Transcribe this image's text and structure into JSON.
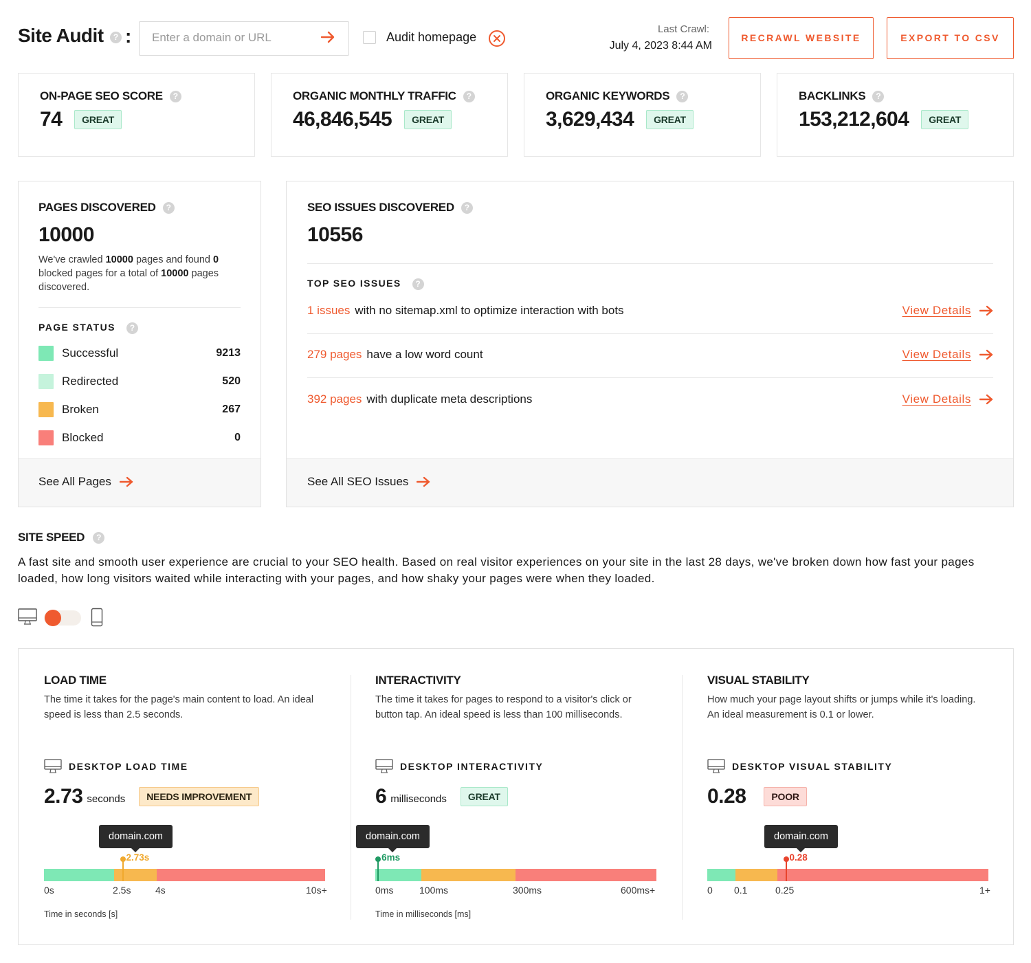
{
  "header": {
    "title": "Site Audit",
    "help": "?",
    "colon": ":",
    "search_placeholder": "Enter a domain or URL",
    "audit_homepage_label": "Audit homepage",
    "last_crawl_label": "Last Crawl:",
    "last_crawl_date": "July 4, 2023 8:44 AM",
    "recrawl_button": "RECRAWL WEBSITE",
    "export_button": "EXPORT TO CSV"
  },
  "stats": [
    {
      "label": "ON-PAGE SEO SCORE",
      "value": "74",
      "badge": "GREAT"
    },
    {
      "label": "ORGANIC MONTHLY TRAFFIC",
      "value": "46,846,545",
      "badge": "GREAT"
    },
    {
      "label": "ORGANIC KEYWORDS",
      "value": "3,629,434",
      "badge": "GREAT"
    },
    {
      "label": "BACKLINKS",
      "value": "153,212,604",
      "badge": "GREAT"
    }
  ],
  "pages": {
    "title": "PAGES DISCOVERED",
    "value": "10000",
    "text_1": "We've crawled ",
    "crawled": "10000",
    "text_2": " pages and found ",
    "blocked": "0",
    "text_3": " blocked pages for a total of ",
    "total": "10000",
    "text_4": " pages discovered.",
    "status_title": "PAGE STATUS",
    "status": [
      {
        "label": "Successful",
        "count": "9213",
        "color": "#7ee8b5"
      },
      {
        "label": "Redirected",
        "count": "520",
        "color": "#c5f3dc"
      },
      {
        "label": "Broken",
        "count": "267",
        "color": "#f7b84f"
      },
      {
        "label": "Blocked",
        "count": "0",
        "color": "#f97f7a"
      }
    ],
    "footer_link": "See All Pages"
  },
  "seo": {
    "title": "SEO ISSUES DISCOVERED",
    "value": "10556",
    "top_title": "TOP SEO ISSUES",
    "issues": [
      {
        "count": "1 issues",
        "text": "with no sitemap.xml to optimize interaction with bots",
        "link": "View Details"
      },
      {
        "count": "279 pages",
        "text": "have a low word count",
        "link": "View Details"
      },
      {
        "count": "392 pages",
        "text": "with duplicate meta descriptions",
        "link": "View Details"
      }
    ],
    "footer_link": "See All SEO Issues"
  },
  "speed": {
    "title": "SITE SPEED",
    "description": "A fast site and smooth user experience are crucial to your SEO health. Based on real visitor experiences on your site in the last 28 days, we've broken down how fast your pages loaded, how long visitors waited while interacting with your pages, and how shaky your pages were when they loaded.",
    "device_selected": "desktop",
    "metrics": [
      {
        "title": "LOAD TIME",
        "description": "The time it takes for the page's main content to load. An ideal speed is less than 2.5 seconds.",
        "subtitle": "DESKTOP LOAD TIME",
        "value": "2.73",
        "unit": "seconds",
        "badge": "NEEDS IMPROVEMENT",
        "tooltip": "domain.com",
        "marker_label": "2.73s",
        "marker_color": "#f0a92e",
        "marker_position": 0.28,
        "segments": [
          {
            "fraction": 0.25,
            "color": "#7ee8b5"
          },
          {
            "fraction": 0.15,
            "color": "#f7b84f"
          },
          {
            "fraction": 0.6,
            "color": "#f97f7a"
          }
        ],
        "ticks": [
          "0s",
          "2.5s",
          "4s",
          "10s+"
        ],
        "axis_caption": "Time in seconds [s]"
      },
      {
        "title": "INTERACTIVITY",
        "description": "The time it takes for pages to respond to a visitor's click or button tap. An ideal speed is less than 100 milliseconds.",
        "subtitle": "DESKTOP INTERACTIVITY",
        "value": "6",
        "unit": "milliseconds",
        "badge": "GREAT",
        "tooltip": "domain.com",
        "marker_label": "6ms",
        "marker_color": "#1f9a63",
        "marker_position": 0.01,
        "segments": [
          {
            "fraction": 0.165,
            "color": "#7ee8b5"
          },
          {
            "fraction": 0.335,
            "color": "#f7b84f"
          },
          {
            "fraction": 0.5,
            "color": "#f97f7a"
          }
        ],
        "ticks": [
          "0ms",
          "100ms",
          "300ms",
          "600ms+"
        ],
        "axis_caption": "Time in milliseconds [ms]"
      },
      {
        "title": "VISUAL STABILITY",
        "description": "How much your page layout shifts or jumps while it's loading. An ideal measurement is 0.1 or lower.",
        "subtitle": "DESKTOP VISUAL STABILITY",
        "value": "0.28",
        "unit": "",
        "badge": "POOR",
        "tooltip": "domain.com",
        "marker_label": "0.28",
        "marker_color": "#e8432d",
        "marker_position": 0.28,
        "segments": [
          {
            "fraction": 0.1,
            "color": "#7ee8b5"
          },
          {
            "fraction": 0.15,
            "color": "#f7b84f"
          },
          {
            "fraction": 0.75,
            "color": "#f97f7a"
          }
        ],
        "ticks": [
          "0",
          "0.1",
          "0.25",
          "1+"
        ],
        "axis_caption": ""
      }
    ]
  }
}
